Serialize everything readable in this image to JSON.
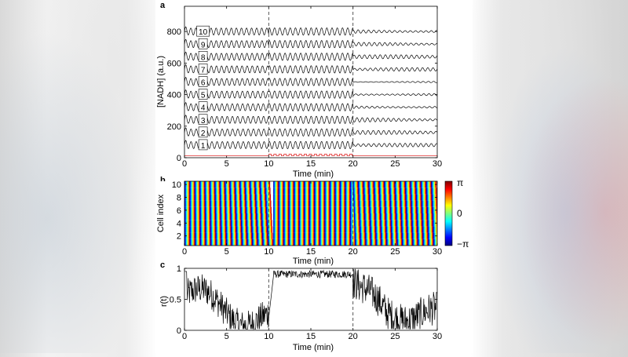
{
  "chart_data": [
    {
      "panel": "a",
      "type": "line",
      "xlabel": "Time (min)",
      "ylabel": "[NADH] (a.u.)",
      "xlim": [
        0,
        30
      ],
      "ylim": [
        0,
        960
      ],
      "xticks": [
        0,
        5,
        10,
        15,
        20,
        25,
        30
      ],
      "yticks": [
        0,
        200,
        400,
        600,
        800
      ],
      "vlines": [
        10,
        20
      ],
      "grid": false,
      "series": [
        {
          "name": "1",
          "baseline": 80,
          "amp_early": 22,
          "amp_mid": 22,
          "amp_late": 8
        },
        {
          "name": "2",
          "baseline": 160,
          "amp_early": 22,
          "amp_mid": 22,
          "amp_late": 9
        },
        {
          "name": "3",
          "baseline": 240,
          "amp_early": 22,
          "amp_mid": 22,
          "amp_late": 10
        },
        {
          "name": "4",
          "baseline": 320,
          "amp_early": 22,
          "amp_mid": 22,
          "amp_late": 7
        },
        {
          "name": "5",
          "baseline": 400,
          "amp_early": 22,
          "amp_mid": 22,
          "amp_late": 6
        },
        {
          "name": "6",
          "baseline": 480,
          "amp_early": 22,
          "amp_mid": 22,
          "amp_late": 3
        },
        {
          "name": "7",
          "baseline": 560,
          "amp_early": 22,
          "amp_mid": 22,
          "amp_late": 8
        },
        {
          "name": "8",
          "baseline": 640,
          "amp_early": 22,
          "amp_mid": 22,
          "amp_late": 9
        },
        {
          "name": "9",
          "baseline": 720,
          "amp_early": 22,
          "amp_mid": 22,
          "amp_late": 8
        },
        {
          "name": "10",
          "baseline": 800,
          "amp_early": 22,
          "amp_mid": 22,
          "amp_late": 9
        }
      ],
      "stimulus_trace": {
        "level": 12,
        "pulse_start": 10,
        "pulse_end": 20,
        "pulse_period": 0.6,
        "pulse_height": 10,
        "color": "#e03030"
      },
      "oscillation_period_min": 0.62
    },
    {
      "panel": "b",
      "type": "heatmap",
      "xlabel": "Time (min)",
      "ylabel": "Cell index",
      "xlim": [
        0,
        30
      ],
      "ylim": [
        0.5,
        10.5
      ],
      "xticks": [
        0,
        5,
        10,
        15,
        20,
        25,
        30
      ],
      "yticks": [
        2,
        4,
        6,
        8,
        10
      ],
      "vlines": [
        10,
        20
      ],
      "colorbar": {
        "colormap": "jet",
        "tick_labels": [
          "π",
          "0",
          "−π"
        ]
      }
    },
    {
      "panel": "c",
      "type": "line",
      "xlabel": "Time (min)",
      "ylabel": "r(t)",
      "xlim": [
        0,
        30
      ],
      "ylim": [
        0,
        1
      ],
      "xticks": [
        0,
        5,
        10,
        15,
        20,
        25,
        30
      ],
      "yticks": [
        0,
        0.5,
        1
      ],
      "vlines": [
        10,
        20
      ],
      "phases": [
        {
          "start": 0,
          "end": 0.3,
          "level": 0.95
        },
        {
          "start": 0.3,
          "end": 10,
          "level": 0.3
        },
        {
          "start": 10,
          "end": 20,
          "level": 0.93
        },
        {
          "start": 20,
          "end": 30,
          "level": 0.35
        }
      ]
    }
  ],
  "colors": {
    "trace": "#000000",
    "vline": "#444444",
    "stimulus": "#e03030"
  }
}
